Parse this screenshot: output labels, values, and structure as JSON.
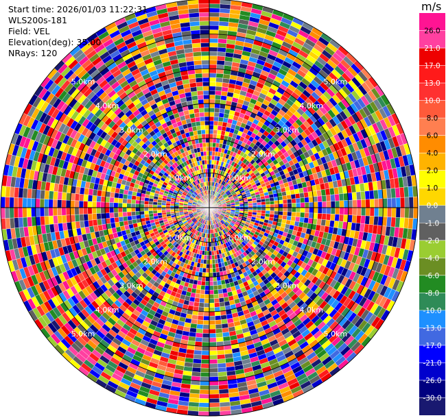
{
  "info": {
    "start_time": "Start time: 2026/01/03 11:22:31",
    "station": "WLS200s-181",
    "field": "Field: VEL",
    "elevation": "Elevation(deg): 35.00",
    "nrays": "NRays: 120"
  },
  "colorbar": {
    "unit": "m/s",
    "ticks": [
      "26.0",
      "21.0",
      "17.0",
      "13.0",
      "10.0",
      "8.0",
      "6.0",
      "4.0",
      "2.0",
      "1.0",
      "0.0",
      "-1.0",
      "-2.0",
      "-4.0",
      "-6.0",
      "-8.0",
      "-10.0",
      "-13.0",
      "-17.0",
      "-21.0",
      "-26.0",
      "-30.0"
    ],
    "colors": [
      "#ff1493",
      "#ff40a0",
      "#ee0000",
      "#ff1a1a",
      "#ff3030",
      "#ff5a3a",
      "#ff7f50",
      "#ff8c00",
      "#ffb300",
      "#ffff00",
      "#ffd700",
      "#708090",
      "#606060",
      "#9acd32",
      "#6b8e23",
      "#228b22",
      "#2e8b57",
      "#1e90ff",
      "#4169e1",
      "#0000ff",
      "#0000cd",
      "#000080",
      "#191970"
    ]
  },
  "chart_data": {
    "type": "heatmap",
    "projection": "polar PPI",
    "field": "VEL",
    "nrays": 120,
    "range_ring_labels": [
      "1.0km",
      "2.0km",
      "3.0km",
      "4.0km",
      "5.0km"
    ],
    "value_range": [
      -30.0,
      26.0
    ],
    "grid": true
  }
}
